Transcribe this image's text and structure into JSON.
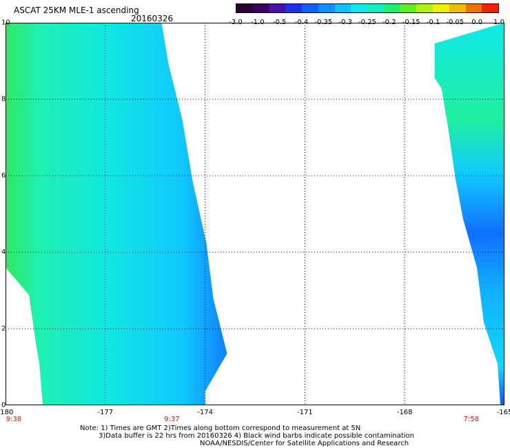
{
  "title": "ASCAT 25KM MLE-1 ascending",
  "date": "20160326",
  "colorbar": {
    "colors": [
      "#2a0030",
      "#3c0060",
      "#4a10a8",
      "#2030e8",
      "#1060ff",
      "#1090ff",
      "#10c0ff",
      "#10e8f0",
      "#10f0c0",
      "#20f070",
      "#60f020",
      "#b0f010",
      "#f0f000",
      "#f0c000",
      "#f07000",
      "#f02000"
    ],
    "ticks": [
      "-3.0",
      "-1.0",
      "-0.5",
      "-0.4",
      "-0.35",
      "-0.3",
      "-0.25",
      "-0.2",
      "-0.15",
      "-0.1",
      "-0.05",
      "0.0",
      "1.0"
    ]
  },
  "map": {
    "lon_range": [
      -180,
      -165
    ],
    "lat_range": [
      0,
      10
    ],
    "x_ticks": [
      "-180",
      "-177",
      "-174",
      "-171",
      "-168",
      "-165"
    ],
    "y_ticks": [
      "10",
      "8",
      "6",
      "4",
      "2",
      "0"
    ],
    "gridlines": true,
    "gridline_style": "dotted",
    "swath_times": [
      {
        "label": "9:38",
        "lon": -180
      },
      {
        "label": "9:37",
        "lon": -175
      },
      {
        "label": "7:58",
        "lon": -166
      }
    ],
    "swaths": [
      {
        "name": "swath-west",
        "lon_left_top": -180,
        "lon_right_top": -175.1,
        "lon_left_bottom": -179.5,
        "lon_right_bottom": -174.0,
        "dominant": "cyan-green",
        "edge_color": "blue"
      },
      {
        "name": "swath-east",
        "lon_left_top": -167.1,
        "lon_right_top": -165.0,
        "lon_left_bottom": -165.2,
        "lon_right_bottom": -165.0,
        "dominant": "cyan",
        "lower_color": "blue"
      }
    ]
  },
  "notes": [
    "Note: 1) Times are GMT 2)Times along bottom correspond to measurement at 5N",
    "3)Data buffer is 22 hrs from 20160326 4) Black wind barbs indicate possible contamination",
    "NOAA/NESDIS/Center for Satellite Applications and Research"
  ]
}
